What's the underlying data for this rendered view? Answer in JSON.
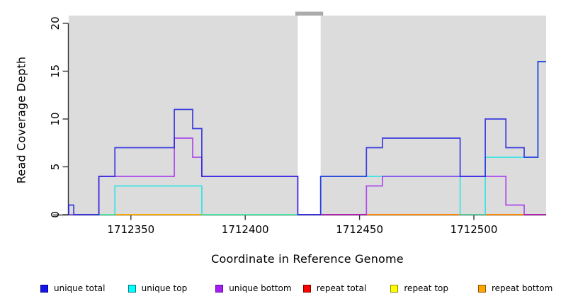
{
  "figure": {
    "xlabel": "Coordinate in Reference Genome",
    "ylabel": "Read Coverage Depth"
  },
  "legend": {
    "items": [
      {
        "label": "unique total",
        "fill": "#1414EB",
        "border": "#00008B"
      },
      {
        "label": "unique top",
        "fill": "#00FFFF",
        "border": "#007A7A"
      },
      {
        "label": "unique bottom",
        "fill": "#A61DF0",
        "border": "#56109E"
      },
      {
        "label": "repeat total",
        "fill": "#FF0000",
        "border": "#7A0000"
      },
      {
        "label": "repeat top",
        "fill": "#FFFF00",
        "border": "#8A8A00"
      },
      {
        "label": "repeat bottom",
        "fill": "#FFA500",
        "border": "#915600"
      }
    ]
  },
  "chart_data": {
    "type": "line",
    "step": true,
    "title": "",
    "xlabel": "Coordinate in Reference Genome",
    "ylabel": "Read Coverage Depth",
    "xlim": [
      1712322.8,
      1712531.6
    ],
    "ylim": [
      0,
      20.81
    ],
    "x_ticks": [
      1712350,
      1712400,
      1712450,
      1712500
    ],
    "y_ticks": [
      0,
      5,
      10,
      15,
      20
    ],
    "plot_bg": "#DCDCDC",
    "gap_band": {
      "x1": 1712423,
      "x2": 1712433,
      "note_color": "#ABABAB"
    },
    "grid": false,
    "legend_position": "bottom",
    "series": [
      {
        "name": "repeat total",
        "color": "#E60000",
        "opacity": 0.9,
        "segments": [
          [
            [
              1712433,
              0
            ],
            [
              1712531.6,
              0
            ]
          ]
        ]
      },
      {
        "name": "repeat top",
        "color": "#F5F500",
        "opacity": 0.9,
        "segments": [
          [
            [
              1712322.8,
              0
            ],
            [
              1712423,
              0
            ]
          ]
        ]
      },
      {
        "name": "repeat bottom",
        "color": "#FF9D00",
        "opacity": 0.95,
        "segments": [
          [
            [
              1712343,
              0
            ],
            [
              1712381,
              0
            ]
          ],
          [
            [
              1712453,
              0
            ],
            [
              1712522,
              0
            ]
          ]
        ]
      },
      {
        "name": "unique top",
        "color": "#00E6E6",
        "opacity": 0.75,
        "segments": [
          [
            [
              1712322.8,
              0
            ],
            [
              1712343,
              3
            ],
            [
              1712381,
              0
            ],
            [
              1712433,
              4
            ],
            [
              1712494,
              0
            ],
            [
              1712505,
              6
            ],
            [
              1712528,
              16
            ],
            [
              1712531.6,
              16
            ]
          ]
        ]
      },
      {
        "name": "unique bottom",
        "color": "#A020F0",
        "opacity": 0.78,
        "segments": [
          [
            [
              1712322.8,
              0
            ],
            [
              1712336,
              4
            ],
            [
              1712369,
              8
            ],
            [
              1712377,
              6
            ],
            [
              1712381,
              4
            ],
            [
              1712423,
              0
            ],
            [
              1712453,
              3
            ],
            [
              1712460,
              4
            ],
            [
              1712514,
              1
            ],
            [
              1712522,
              0
            ],
            [
              1712531.6,
              0
            ]
          ]
        ]
      },
      {
        "name": "unique total",
        "color": "#2424DE",
        "opacity": 0.88,
        "segments": [
          [
            [
              1712322.8,
              0
            ],
            [
              1712322.8,
              1
            ],
            [
              1712325,
              0
            ],
            [
              1712336,
              4
            ],
            [
              1712343,
              7
            ],
            [
              1712369,
              11
            ],
            [
              1712377,
              9
            ],
            [
              1712381,
              4
            ],
            [
              1712423,
              0
            ],
            [
              1712433,
              4
            ],
            [
              1712453,
              7
            ],
            [
              1712460,
              8
            ],
            [
              1712494,
              4
            ],
            [
              1712505,
              10
            ],
            [
              1712514,
              7
            ],
            [
              1712522,
              6
            ],
            [
              1712528,
              16
            ],
            [
              1712531.6,
              16
            ]
          ]
        ]
      }
    ]
  }
}
